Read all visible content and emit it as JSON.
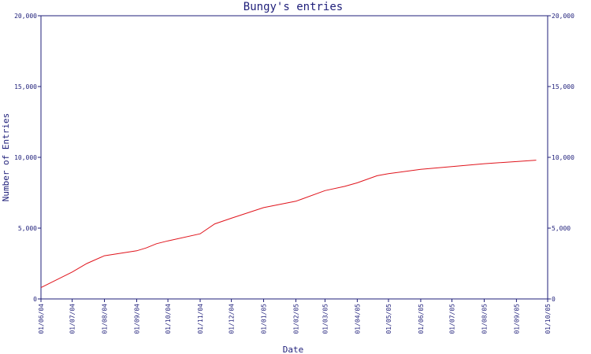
{
  "chart_data": {
    "type": "line",
    "title": "Bungy's entries",
    "xlabel": "Date",
    "ylabel": "Number of Entries",
    "ylim": [
      0,
      20000
    ],
    "y_ticks": [
      0,
      5000,
      10000,
      15000,
      20000
    ],
    "y_tick_labels": [
      "0",
      "5,000",
      "10,000",
      "15,000",
      "20,000"
    ],
    "x_range": [
      "2004-06-01",
      "2005-10-01"
    ],
    "x_ticks": [
      "2004-06-01",
      "2004-07-01",
      "2004-08-01",
      "2004-09-01",
      "2004-10-01",
      "2004-11-01",
      "2004-12-01",
      "2005-01-01",
      "2005-02-01",
      "2005-03-01",
      "2005-04-01",
      "2005-05-01",
      "2005-06-01",
      "2005-07-01",
      "2005-08-01",
      "2005-09-01",
      "2005-10-01"
    ],
    "x_tick_labels": [
      "01/06/04",
      "01/07/04",
      "01/08/04",
      "01/09/04",
      "01/10/04",
      "01/11/04",
      "01/12/04",
      "01/01/05",
      "01/02/05",
      "01/03/05",
      "01/04/05",
      "01/05/05",
      "01/06/05",
      "01/07/05",
      "01/08/05",
      "01/09/05",
      "01/10/05"
    ],
    "grid": false,
    "right_axis": true,
    "colors": {
      "line": "#e0141c",
      "axis": "#1f1f7a",
      "background": "#ffffff"
    },
    "series": [
      {
        "x": [
          "2004-06-01",
          "2004-07-01",
          "2004-07-15",
          "2004-08-01",
          "2004-09-01",
          "2004-09-10",
          "2004-09-20",
          "2004-10-01",
          "2004-11-01",
          "2004-11-15",
          "2004-12-01",
          "2005-01-01",
          "2005-02-01",
          "2005-03-01",
          "2005-03-20",
          "2005-04-01",
          "2005-04-20",
          "2005-05-01",
          "2005-06-01",
          "2005-07-01",
          "2005-08-01",
          "2005-09-01",
          "2005-09-20"
        ],
        "values": [
          800,
          1900,
          2500,
          3050,
          3400,
          3600,
          3900,
          4100,
          4600,
          5300,
          5700,
          6450,
          6900,
          7650,
          7950,
          8200,
          8700,
          8850,
          9150,
          9350,
          9550,
          9700,
          9800
        ]
      }
    ]
  }
}
